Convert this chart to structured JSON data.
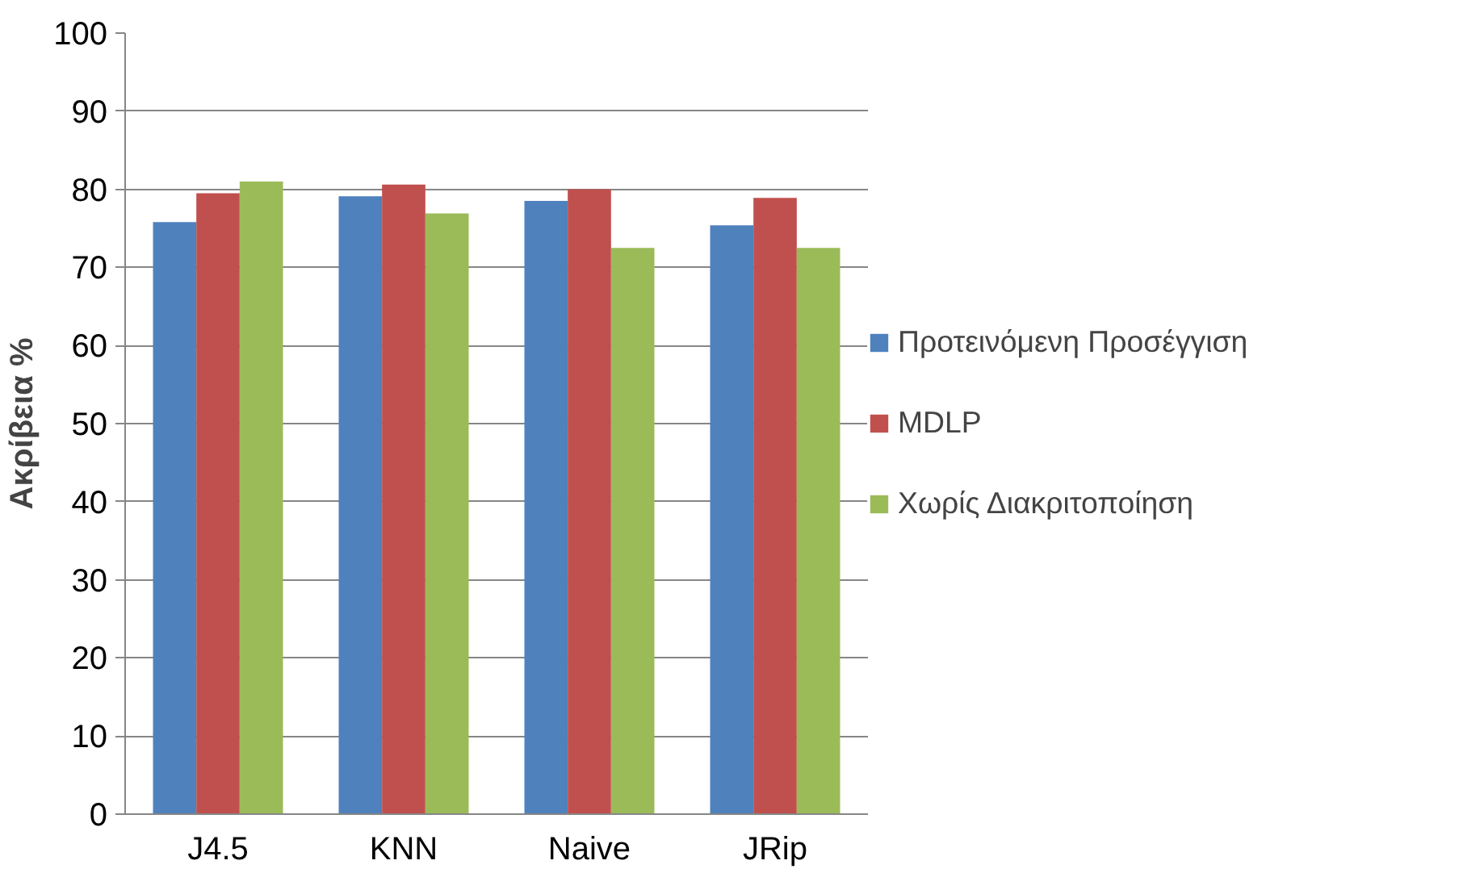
{
  "chart_data": {
    "type": "bar",
    "ylabel": "Ακρίβεια %",
    "categories": [
      "J4.5",
      "KNN",
      "Naive",
      "JRip"
    ],
    "series": [
      {
        "name": "Προτεινόμενη Προσέγγιση",
        "color": "#4f81bd",
        "values": [
          75.8,
          79.1,
          78.5,
          75.4
        ]
      },
      {
        "name": "MDLP",
        "color": "#c0504d",
        "values": [
          79.5,
          80.6,
          80.0,
          78.9
        ]
      },
      {
        "name": "Χωρίς Διακριτοποίηση",
        "color": "#9bbb59",
        "values": [
          81.0,
          76.9,
          72.5,
          72.5
        ]
      }
    ],
    "ylim": [
      0,
      100
    ],
    "yticks": [
      0,
      10,
      20,
      30,
      40,
      50,
      60,
      70,
      80,
      90,
      100
    ],
    "grid": "y",
    "legend": "right"
  }
}
